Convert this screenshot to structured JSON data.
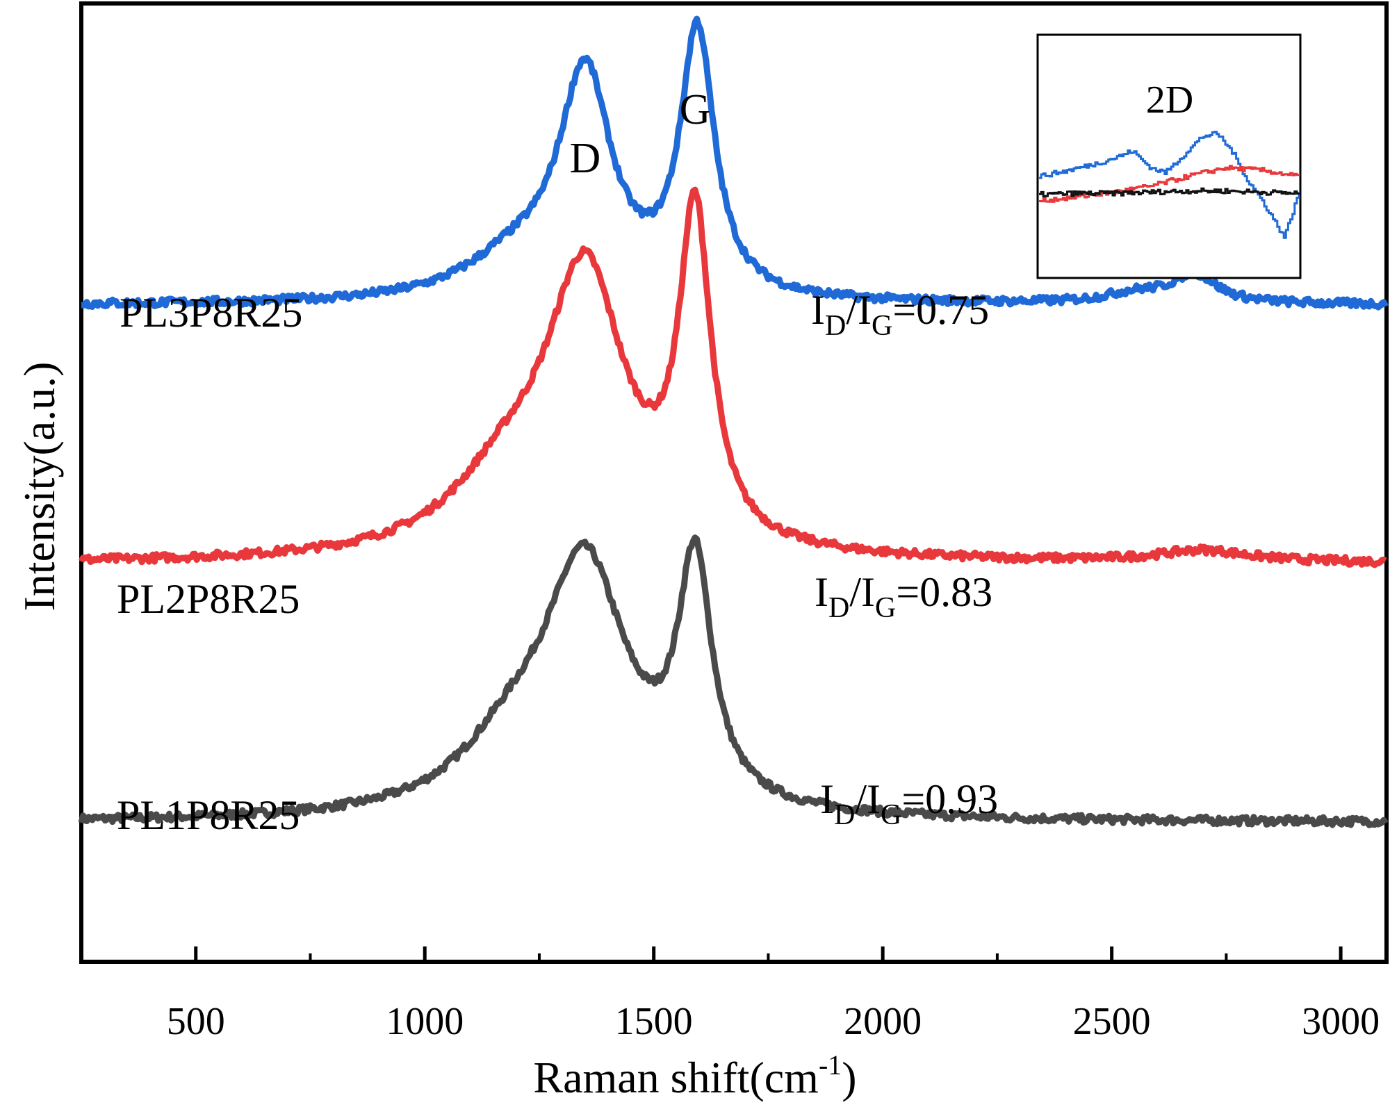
{
  "chart_data": {
    "type": "line",
    "title": "",
    "xlabel": "Raman shift(cm",
    "xlabel_sup": "-1",
    "xlabel_suffix": ")",
    "ylabel": "Intensity(a.u.)",
    "xlim": [
      250,
      3100
    ],
    "ylim": [
      0,
      1
    ],
    "x_ticks": [
      500,
      1000,
      1500,
      2000,
      2500,
      3000
    ],
    "x_minor_ticks": [
      750,
      1250,
      1750,
      2250,
      2750
    ],
    "peak_labels": [
      {
        "text": "D",
        "x": 1350
      },
      {
        "text": "G",
        "x": 1590
      }
    ],
    "series": [
      {
        "name": "PL1P8R25",
        "color": "#4a4a4a",
        "ratio_label": {
          "main": "I",
          "sub1": "D",
          "slash": "/I",
          "sub2": "G",
          "value": "=0.93"
        },
        "baseline": 0.145,
        "peaks": [
          {
            "center": 1350,
            "height": 0.255,
            "width": 110
          },
          {
            "center": 1590,
            "height": 0.245,
            "width": 45
          },
          {
            "center": 1190,
            "height": 0.06,
            "width": 140
          }
        ],
        "x": [
          250,
          400,
          600,
          800,
          1000,
          1100,
          1200,
          1300,
          1350,
          1400,
          1480,
          1550,
          1590,
          1630,
          1700,
          1800,
          2000,
          2500,
          2700,
          3000,
          3100
        ],
        "y": [
          0.145,
          0.145,
          0.145,
          0.146,
          0.15,
          0.18,
          0.27,
          0.36,
          0.4,
          0.37,
          0.33,
          0.36,
          0.39,
          0.33,
          0.17,
          0.146,
          0.145,
          0.145,
          0.147,
          0.145,
          0.145
        ]
      },
      {
        "name": "PL2P8R25",
        "color": "#e8383c",
        "ratio_label": {
          "main": "I",
          "sub1": "D",
          "slash": "/I",
          "sub2": "G",
          "value": "=0.83"
        },
        "baseline": 0.415,
        "peaks": [
          {
            "center": 1350,
            "height": 0.285,
            "width": 105
          },
          {
            "center": 1590,
            "height": 0.335,
            "width": 42
          },
          {
            "center": 1180,
            "height": 0.07,
            "width": 150
          },
          {
            "center": 2700,
            "height": 0.012,
            "width": 120
          }
        ],
        "x": [
          250,
          400,
          600,
          800,
          1000,
          1100,
          1200,
          1300,
          1350,
          1400,
          1480,
          1550,
          1590,
          1630,
          1700,
          1800,
          2000,
          2500,
          2700,
          3000,
          3100
        ],
        "y": [
          0.415,
          0.415,
          0.415,
          0.416,
          0.42,
          0.45,
          0.55,
          0.66,
          0.7,
          0.67,
          0.62,
          0.67,
          0.75,
          0.62,
          0.44,
          0.417,
          0.415,
          0.416,
          0.427,
          0.415,
          0.415
        ]
      },
      {
        "name": "PL3P8R25",
        "color": "#1f6ad6",
        "ratio_label": {
          "main": "I",
          "sub1": "D",
          "slash": "/I",
          "sub2": "G",
          "value": "=0.75"
        },
        "baseline": 0.685,
        "peaks": [
          {
            "center": 1350,
            "height": 0.23,
            "width": 70
          },
          {
            "center": 1595,
            "height": 0.275,
            "width": 45
          },
          {
            "center": 1200,
            "height": 0.04,
            "width": 140
          },
          {
            "center": 2680,
            "height": 0.03,
            "width": 60
          },
          {
            "center": 2550,
            "height": 0.01,
            "width": 80
          }
        ],
        "x": [
          250,
          400,
          600,
          800,
          1000,
          1100,
          1200,
          1300,
          1350,
          1400,
          1450,
          1550,
          1595,
          1650,
          1700,
          1800,
          2000,
          2500,
          2680,
          2850,
          3000,
          3100
        ],
        "y": [
          0.685,
          0.683,
          0.688,
          0.683,
          0.68,
          0.7,
          0.73,
          0.82,
          0.915,
          0.84,
          0.79,
          0.86,
          0.96,
          0.76,
          0.685,
          0.686,
          0.688,
          0.695,
          0.715,
          0.68,
          0.68,
          0.715
        ]
      }
    ],
    "inset": {
      "title": "2D",
      "xlim": [
        2400,
        3100
      ],
      "series": [
        {
          "name": "PL3P8R25",
          "color": "#1f6ad6",
          "x": [
            2400,
            2480,
            2560,
            2620,
            2650,
            2700,
            2740,
            2780,
            2840,
            2880,
            2920,
            2960,
            3000,
            3060,
            3100
          ],
          "y": [
            0.55,
            0.6,
            0.66,
            0.72,
            0.76,
            0.62,
            0.58,
            0.7,
            0.88,
            0.9,
            0.75,
            0.52,
            0.35,
            0.05,
            0.42
          ]
        },
        {
          "name": "PL2P8R25",
          "color": "#e8383c",
          "x": [
            2400,
            2500,
            2600,
            2700,
            2800,
            2900,
            3000,
            3100
          ],
          "y": [
            0.35,
            0.38,
            0.42,
            0.47,
            0.55,
            0.62,
            0.6,
            0.55
          ]
        },
        {
          "name": "PL1P8R25",
          "color": "#111111",
          "x": [
            2400,
            2500,
            2600,
            2700,
            2800,
            2900,
            3000,
            3100
          ],
          "y": [
            0.4,
            0.41,
            0.41,
            0.42,
            0.43,
            0.43,
            0.42,
            0.41
          ]
        }
      ]
    }
  }
}
